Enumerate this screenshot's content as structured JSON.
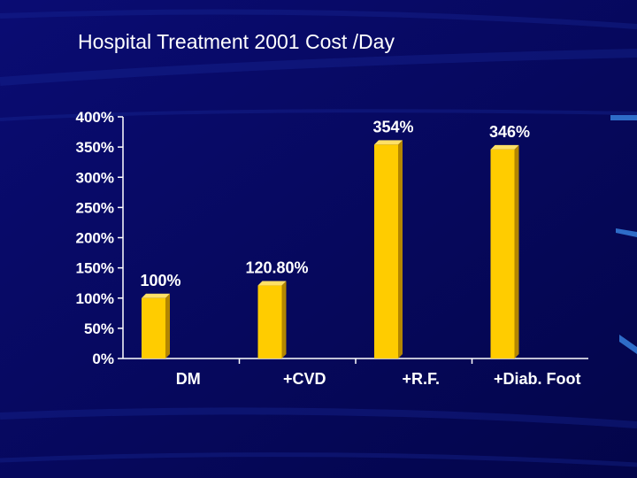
{
  "slide": {
    "title": "Hospital Treatment 2001 Cost /Day"
  },
  "colors": {
    "background": "#06085e",
    "bar_front": "#ffcc00",
    "bar_side": "#b38600",
    "bar_top": "#ffe066",
    "axis": "#ffffff",
    "text": "#ffffff"
  },
  "chart_data": {
    "type": "bar",
    "title": "Hospital Treatment 2001 Cost /Day",
    "categories": [
      "DM",
      "+CVD",
      "+R.F.",
      "+Diab. Foot"
    ],
    "values": [
      100,
      120.8,
      354,
      346
    ],
    "data_labels": [
      "100%",
      "120.80%",
      "354%",
      "346%"
    ],
    "ylim": [
      0,
      400
    ],
    "yticks": [
      0,
      50,
      100,
      150,
      200,
      250,
      300,
      350,
      400
    ],
    "ytick_labels": [
      "0%",
      "50%",
      "100%",
      "150%",
      "200%",
      "250%",
      "300%",
      "350%",
      "400%"
    ],
    "xlabel": "",
    "ylabel": "",
    "grid": false,
    "legend": "none"
  }
}
